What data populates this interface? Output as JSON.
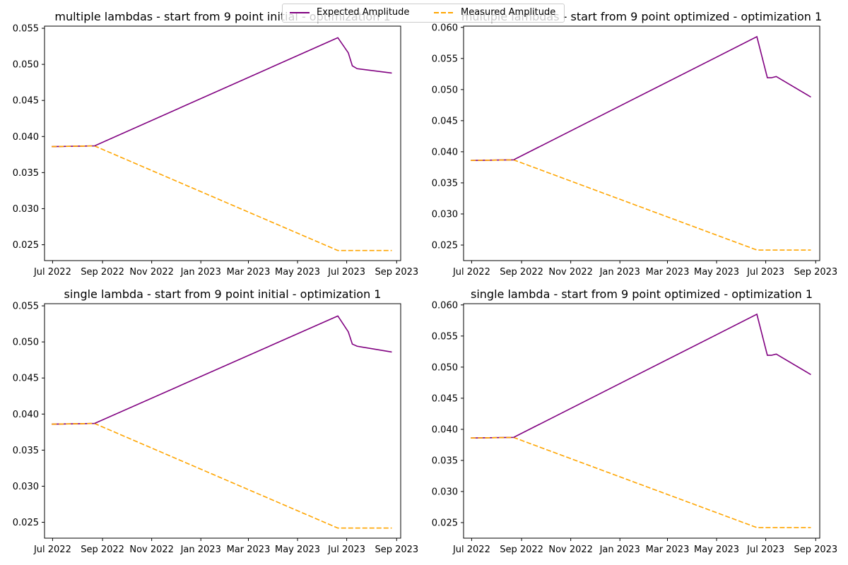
{
  "colors": {
    "expected": "#800080",
    "measured": "#FFA500",
    "axis": "#000000",
    "background": "#ffffff"
  },
  "legend": {
    "placement": "upper-center",
    "entries": [
      {
        "label": "Expected Amplitude",
        "color": "#800080",
        "style": "solid"
      },
      {
        "label": "Measured Amplitude",
        "color": "#FFA500",
        "style": "dashed"
      }
    ]
  },
  "chart_data": [
    {
      "type": "line",
      "title": "multiple lambdas - start from 9 point initial - optimization 1",
      "xlabel": "",
      "ylabel": "",
      "x_tick_labels": [
        "Jul 2022",
        "Sep 2022",
        "Nov 2022",
        "Jan 2023",
        "Mar 2023",
        "May 2023",
        "Jul 2023",
        "Sep 2023"
      ],
      "x_ticks": [
        "2022-07-01",
        "2022-09-01",
        "2022-11-01",
        "2023-01-01",
        "2023-03-01",
        "2023-05-01",
        "2023-07-01",
        "2023-09-01"
      ],
      "xlim": [
        "2022-06-21",
        "2023-09-06"
      ],
      "y_tick_labels": [
        "0.025",
        "0.030",
        "0.035",
        "0.040",
        "0.045",
        "0.050",
        "0.055"
      ],
      "y_ticks": [
        0.025,
        0.03,
        0.035,
        0.04,
        0.045,
        0.05,
        0.055
      ],
      "ylim": [
        0.0228,
        0.0553
      ],
      "grid": false,
      "series": [
        {
          "name": "Expected Amplitude",
          "x": [
            "2022-06-30",
            "2022-08-22",
            "2023-06-20",
            "2023-07-03",
            "2023-07-08",
            "2023-07-14",
            "2023-08-26"
          ],
          "y": [
            0.0386,
            0.0387,
            0.0537,
            0.0516,
            0.0498,
            0.0494,
            0.0488
          ]
        },
        {
          "name": "Measured Amplitude",
          "x": [
            "2022-06-30",
            "2022-08-22",
            "2023-06-20",
            "2023-07-03",
            "2023-07-08",
            "2023-07-14",
            "2023-08-26"
          ],
          "y": [
            0.0386,
            0.0387,
            0.0242,
            0.0242,
            0.0242,
            0.0242,
            0.0242
          ]
        }
      ]
    },
    {
      "type": "line",
      "title": "multiple lambdas - start from 9 point optimized - optimization 1",
      "xlabel": "",
      "ylabel": "",
      "x_tick_labels": [
        "Jul 2022",
        "Sep 2022",
        "Nov 2022",
        "Jan 2023",
        "Mar 2023",
        "May 2023",
        "Jul 2023",
        "Sep 2023"
      ],
      "x_ticks": [
        "2022-07-01",
        "2022-09-01",
        "2022-11-01",
        "2023-01-01",
        "2023-03-01",
        "2023-05-01",
        "2023-07-01",
        "2023-09-01"
      ],
      "xlim": [
        "2022-06-21",
        "2023-09-06"
      ],
      "y_tick_labels": [
        "0.025",
        "0.030",
        "0.035",
        "0.040",
        "0.045",
        "0.050",
        "0.055",
        "0.060"
      ],
      "y_ticks": [
        0.025,
        0.03,
        0.035,
        0.04,
        0.045,
        0.05,
        0.055,
        0.06
      ],
      "ylim": [
        0.0225,
        0.0602
      ],
      "grid": false,
      "series": [
        {
          "name": "Expected Amplitude",
          "x": [
            "2022-06-30",
            "2022-08-22",
            "2023-06-20",
            "2023-07-03",
            "2023-07-08",
            "2023-07-14",
            "2023-08-26"
          ],
          "y": [
            0.0386,
            0.0387,
            0.0585,
            0.0519,
            0.0519,
            0.0521,
            0.0488
          ]
        },
        {
          "name": "Measured Amplitude",
          "x": [
            "2022-06-30",
            "2022-08-22",
            "2023-06-20",
            "2023-07-03",
            "2023-07-08",
            "2023-07-14",
            "2023-08-26"
          ],
          "y": [
            0.0386,
            0.0387,
            0.0242,
            0.0242,
            0.0242,
            0.0242,
            0.0242
          ]
        }
      ]
    },
    {
      "type": "line",
      "title": "single lambda - start from 9 point initial - optimization 1",
      "xlabel": "",
      "ylabel": "",
      "x_tick_labels": [
        "Jul 2022",
        "Sep 2022",
        "Nov 2022",
        "Jan 2023",
        "Mar 2023",
        "May 2023",
        "Jul 2023",
        "Sep 2023"
      ],
      "x_ticks": [
        "2022-07-01",
        "2022-09-01",
        "2022-11-01",
        "2023-01-01",
        "2023-03-01",
        "2023-05-01",
        "2023-07-01",
        "2023-09-01"
      ],
      "xlim": [
        "2022-06-21",
        "2023-09-06"
      ],
      "y_tick_labels": [
        "0.025",
        "0.030",
        "0.035",
        "0.040",
        "0.045",
        "0.050",
        "0.055"
      ],
      "y_ticks": [
        0.025,
        0.03,
        0.035,
        0.04,
        0.045,
        0.05,
        0.055
      ],
      "ylim": [
        0.0228,
        0.0553
      ],
      "grid": false,
      "series": [
        {
          "name": "Expected Amplitude",
          "x": [
            "2022-06-30",
            "2022-08-22",
            "2023-06-20",
            "2023-07-03",
            "2023-07-08",
            "2023-07-14",
            "2023-08-26"
          ],
          "y": [
            0.0386,
            0.0387,
            0.0536,
            0.0514,
            0.0497,
            0.0494,
            0.0486
          ]
        },
        {
          "name": "Measured Amplitude",
          "x": [
            "2022-06-30",
            "2022-08-22",
            "2023-06-20",
            "2023-07-03",
            "2023-07-08",
            "2023-07-14",
            "2023-08-26"
          ],
          "y": [
            0.0386,
            0.0387,
            0.0242,
            0.0242,
            0.0242,
            0.0242,
            0.0242
          ]
        }
      ]
    },
    {
      "type": "line",
      "title": "single lambda - start from 9 point optimized - optimization 1",
      "xlabel": "",
      "ylabel": "",
      "x_tick_labels": [
        "Jul 2022",
        "Sep 2022",
        "Nov 2022",
        "Jan 2023",
        "Mar 2023",
        "May 2023",
        "Jul 2023",
        "Sep 2023"
      ],
      "x_ticks": [
        "2022-07-01",
        "2022-09-01",
        "2022-11-01",
        "2023-01-01",
        "2023-03-01",
        "2023-05-01",
        "2023-07-01",
        "2023-09-01"
      ],
      "xlim": [
        "2022-06-21",
        "2023-09-06"
      ],
      "y_tick_labels": [
        "0.025",
        "0.030",
        "0.035",
        "0.040",
        "0.045",
        "0.050",
        "0.055",
        "0.060"
      ],
      "y_ticks": [
        0.025,
        0.03,
        0.035,
        0.04,
        0.045,
        0.05,
        0.055,
        0.06
      ],
      "ylim": [
        0.0225,
        0.0602
      ],
      "grid": false,
      "series": [
        {
          "name": "Expected Amplitude",
          "x": [
            "2022-06-30",
            "2022-08-22",
            "2023-06-20",
            "2023-07-03",
            "2023-07-08",
            "2023-07-14",
            "2023-08-26"
          ],
          "y": [
            0.0386,
            0.0387,
            0.0585,
            0.0519,
            0.0519,
            0.0521,
            0.0488
          ]
        },
        {
          "name": "Measured Amplitude",
          "x": [
            "2022-06-30",
            "2022-08-22",
            "2023-06-20",
            "2023-07-03",
            "2023-07-08",
            "2023-07-14",
            "2023-08-26"
          ],
          "y": [
            0.0386,
            0.0387,
            0.0242,
            0.0242,
            0.0242,
            0.0242,
            0.0242
          ]
        }
      ]
    }
  ]
}
